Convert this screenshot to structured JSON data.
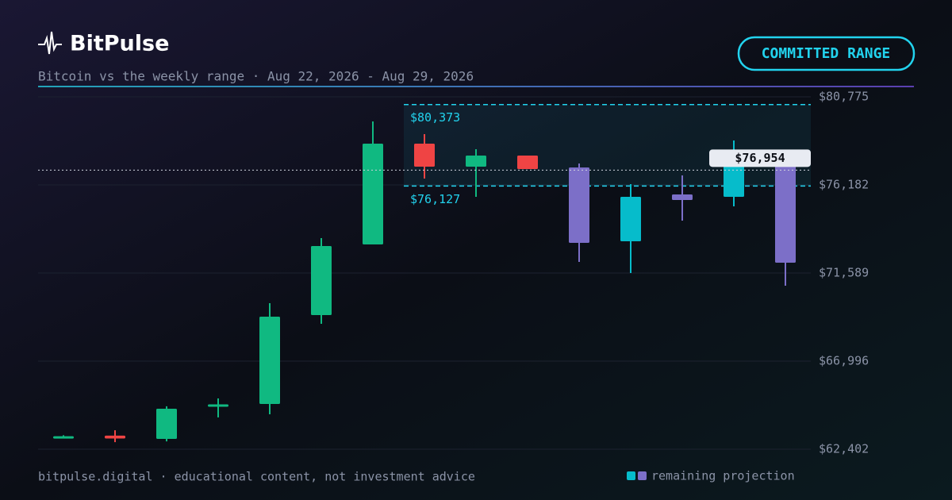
{
  "header": {
    "brand": "BitPulse",
    "subtitle": "Bitcoin vs the weekly range · Aug 22, 2026 - Aug 29, 2026",
    "badge": "COMMITTED RANGE"
  },
  "footer": "bitpulse.digital · educational content, not investment advice",
  "chart_data": {
    "type": "candlestick",
    "categories": [
      null,
      null,
      null,
      null,
      null,
      null,
      null,
      null,
      null,
      null,
      null,
      null,
      null,
      null,
      null
    ],
    "open": [
      63040,
      63110,
      62940,
      64620,
      64761,
      69395,
      73078,
      78334,
      77134,
      77713,
      77092,
      75561,
      75685,
      77547,
      77547
    ],
    "high": [
      63130,
      63390,
      64640,
      65050,
      70016,
      73409,
      79492,
      78830,
      78044,
      77713,
      77299,
      76223,
      76678,
      78499,
      77547
    ],
    "low": [
      62990,
      62770,
      62810,
      64060,
      64223,
      68940,
      73078,
      76513,
      75561,
      77010,
      72168,
      71589,
      74320,
      75064,
      70927
    ],
    "close": [
      63080,
      62960,
      64510,
      64740,
      69313,
      72996,
      78334,
      77134,
      77713,
      77010,
      73161,
      73244,
      75396,
      75561,
      72127
    ],
    "colors": [
      "#10b981",
      "#ef4444",
      "#10b981",
      "#10b981",
      "#10b981",
      "#10b981",
      "#10b981",
      "#ef4444",
      "#10b981",
      "#ef4444",
      "#7c6fc8",
      "#06bccb",
      "#7c6fc8",
      "#06bccb",
      "#7c6fc8"
    ],
    "ylim": [
      62402,
      80775
    ],
    "yticks": [
      {
        "value": 62402,
        "label": "$62,402"
      },
      {
        "value": 66996,
        "label": "$66,996"
      },
      {
        "value": 71589,
        "label": "$71,589"
      },
      {
        "value": 76182,
        "label": "$76,182"
      },
      {
        "value": 80775,
        "label": "$80,775"
      }
    ],
    "grid": true,
    "range": {
      "high": 80373,
      "high_label": "$80,373",
      "low": 76127,
      "low_label": "$76,127",
      "color": "#22d3ee"
    },
    "current": {
      "value": 76954,
      "label": "$76,954"
    },
    "legend": {
      "label": "remaining projection",
      "colors": [
        "#06bccb",
        "#7c6fc8"
      ]
    }
  }
}
